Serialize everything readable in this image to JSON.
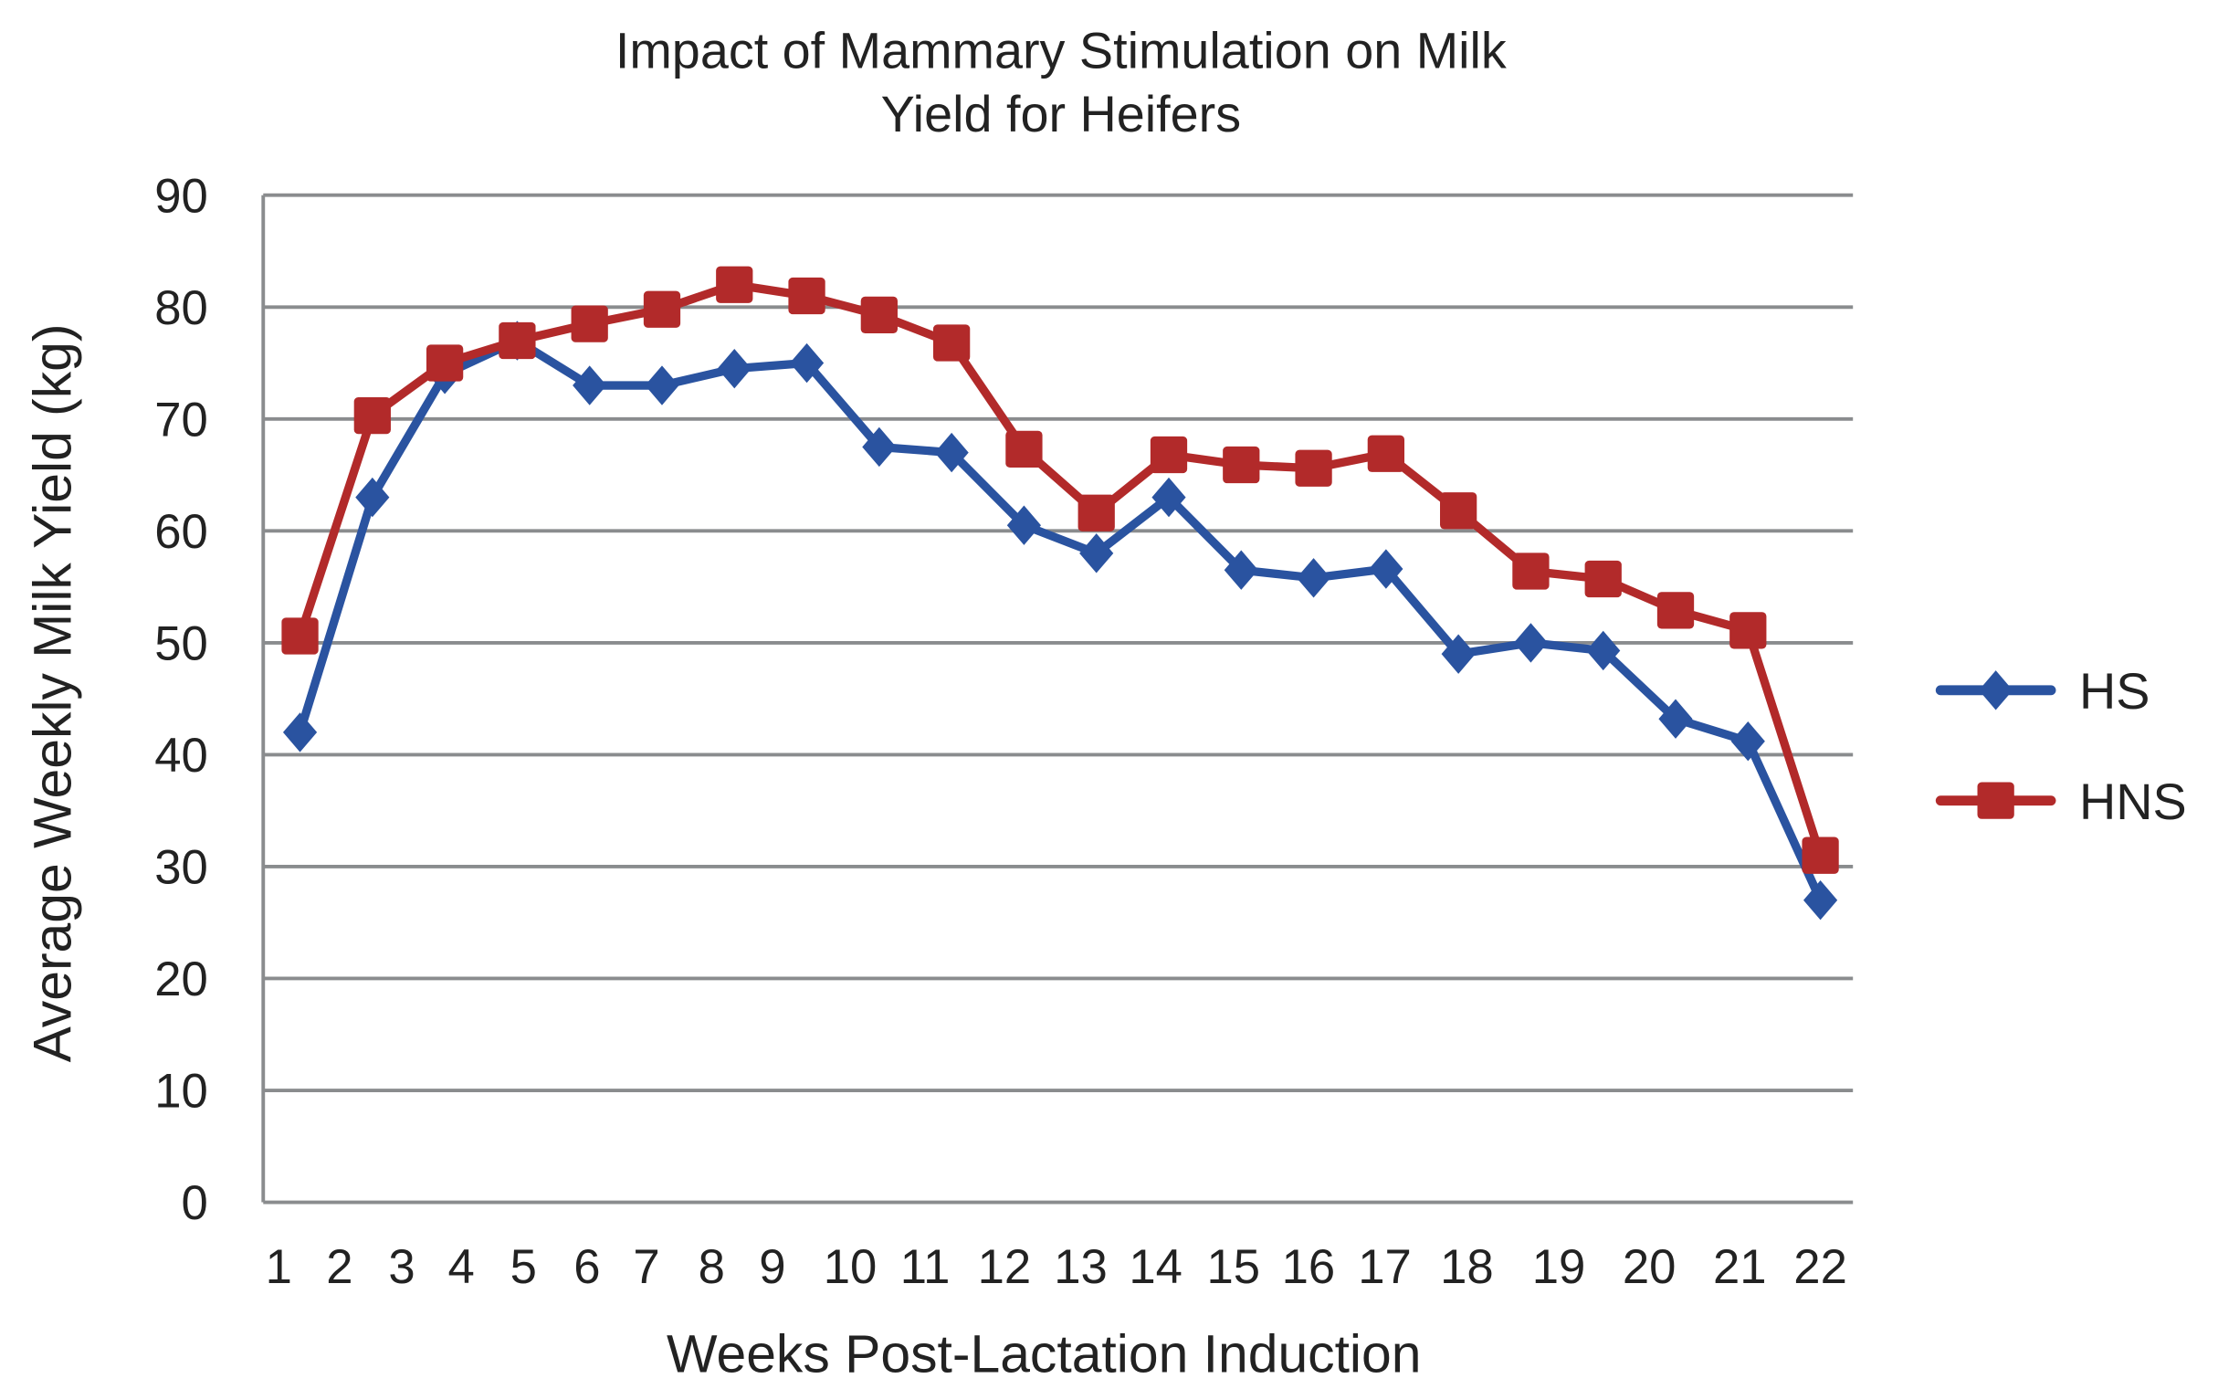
{
  "chart_data": {
    "type": "line",
    "title_lines": [
      "Impact of Mammary Stimulation on Milk",
      "Yield for Heifers"
    ],
    "xlabel": "Weeks Post-Lactation Induction",
    "ylabel": "Average Weekly Milk Yield (kg)",
    "ylim": [
      0,
      90
    ],
    "yticks": [
      0,
      10,
      20,
      30,
      40,
      50,
      60,
      70,
      80,
      90
    ],
    "grid": true,
    "legend_position": "right",
    "categories": [
      "1",
      "2",
      "3",
      "4",
      "5",
      "6",
      "7",
      "8",
      "9",
      "10",
      "11",
      "12",
      "13",
      "14",
      "15",
      "16",
      "17",
      "18",
      "19",
      "20",
      "21",
      "22"
    ],
    "series": [
      {
        "name": "HS",
        "color": "#2a53a0",
        "marker": "diamond",
        "values": [
          42,
          63,
          74,
          77,
          73,
          73,
          74.5,
          75,
          67.5,
          67,
          60.5,
          58,
          63,
          56.5,
          55.8,
          56.6,
          49,
          50,
          49.3,
          43.2,
          41.2,
          27
        ]
      },
      {
        "name": "HNS",
        "color": "#b22a2a",
        "marker": "square",
        "values": [
          50.6,
          70.3,
          75,
          77,
          78.5,
          79.8,
          82,
          81,
          79.3,
          76.8,
          67.3,
          61.6,
          66.8,
          65.9,
          65.6,
          66.9,
          61.8,
          56.4,
          55.7,
          52.9,
          51.1,
          31
        ]
      }
    ]
  }
}
